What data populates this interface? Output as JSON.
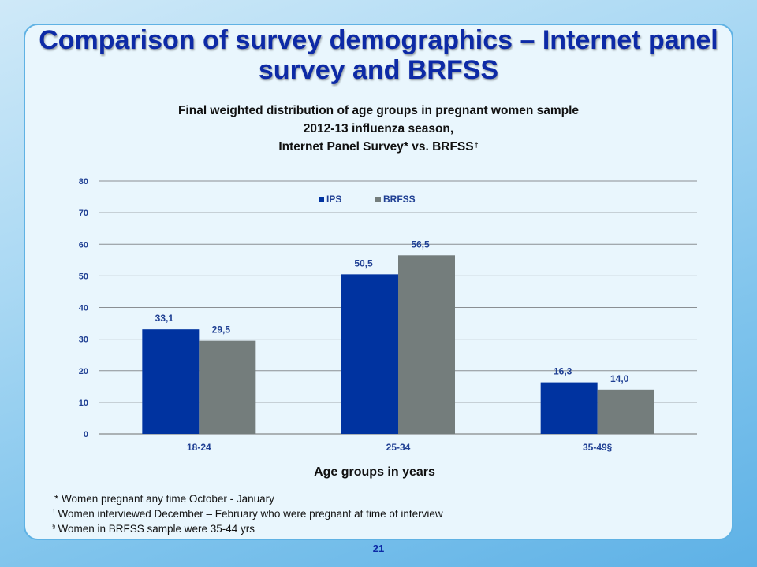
{
  "slide": {
    "title": "Comparison of survey demographics – Internet panel survey and BRFSS",
    "page_number": "21"
  },
  "chart_data": {
    "type": "bar",
    "title_lines": [
      "Final weighted distribution of age groups in pregnant women sample",
      "2012-13 influenza season,",
      "Internet Panel Survey* vs. BRFSS"
    ],
    "title_superscript": "†",
    "categories": [
      "18-24",
      "25-34",
      "35-49§"
    ],
    "series": [
      {
        "name": "IPS",
        "values": [
          33.1,
          50.5,
          16.3
        ],
        "labels": [
          "33,1",
          "50,5",
          "16,3"
        ],
        "color": "#0033a0"
      },
      {
        "name": "BRFSS",
        "values": [
          29.5,
          56.5,
          14.0
        ],
        "labels": [
          "29,5",
          "56,5",
          "14,0"
        ],
        "color": "#747d7c"
      }
    ],
    "xlabel": "Age groups in years",
    "ylabel": "",
    "ylim": [
      0,
      80
    ],
    "yticks": [
      0,
      10,
      20,
      30,
      40,
      50,
      60,
      70,
      80
    ],
    "grid": true,
    "legend_position": "top-center"
  },
  "footnotes": [
    {
      "marker": "",
      "text": "* Women pregnant any time October - January"
    },
    {
      "marker": "†",
      "text": "Women interviewed December – February who were pregnant at time of interview"
    },
    {
      "marker": "§",
      "text": "Women in BRFSS sample were 35-44 yrs"
    }
  ]
}
